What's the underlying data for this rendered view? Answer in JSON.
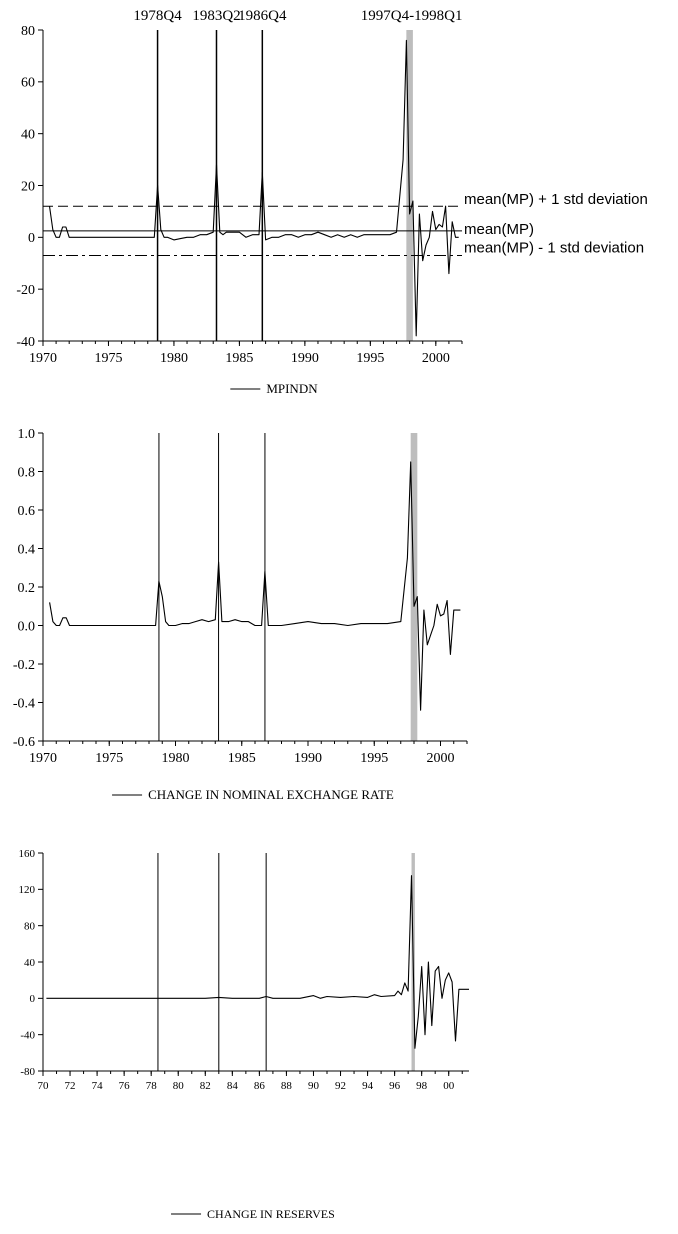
{
  "chart_data": [
    {
      "type": "line",
      "legend_position": "bottom-center",
      "x_ticks": [
        "1970",
        "1975",
        "1980",
        "1985",
        "1990",
        "1995",
        "2000"
      ],
      "y_ticks": [
        "80",
        "60",
        "40",
        "20",
        "0",
        "-20",
        "-40"
      ],
      "ylim": [
        -40,
        80
      ],
      "xlim": [
        1970,
        2002
      ],
      "series": [
        {
          "name": "MPINDN",
          "x": [
            1970.5,
            1970.75,
            1971.0,
            1971.25,
            1971.5,
            1971.75,
            1972.0,
            1972.25,
            1973,
            1974,
            1975,
            1976,
            1977,
            1978,
            1978.5,
            1978.75,
            1979.0,
            1979.25,
            1979.5,
            1980,
            1980.5,
            1981,
            1981.5,
            1982,
            1982.5,
            1983,
            1983.25,
            1983.5,
            1983.75,
            1984,
            1984.5,
            1985,
            1985.5,
            1986,
            1986.5,
            1986.75,
            1987.0,
            1987.5,
            1988,
            1988.5,
            1989,
            1989.5,
            1990,
            1990.5,
            1991,
            1991.5,
            1992,
            1992.5,
            1993,
            1993.5,
            1994,
            1994.5,
            1995,
            1995.5,
            1996,
            1996.5,
            1997,
            1997.5,
            1997.75,
            1998.0,
            1998.25,
            1998.5,
            1998.75,
            1999.0,
            1999.25,
            1999.5,
            1999.75,
            2000.0,
            2000.25,
            2000.5,
            2000.75,
            2001.0,
            2001.25,
            2001.5,
            2001.75
          ],
          "y": [
            12,
            3,
            0,
            0,
            4,
            4,
            0,
            0,
            0,
            0,
            0,
            0,
            0,
            0,
            0,
            20,
            3,
            0,
            0,
            -1,
            -0.5,
            0,
            0,
            1,
            1,
            2,
            28,
            2,
            1,
            2,
            2,
            2,
            0,
            1,
            1,
            25,
            -1,
            0,
            0,
            1,
            1,
            0,
            1,
            1,
            2,
            1,
            0,
            1,
            0,
            1,
            0,
            1,
            1,
            1,
            1,
            1,
            2,
            30,
            76,
            9,
            14,
            -38,
            9,
            -9,
            -3,
            0,
            10,
            3,
            5,
            4,
            12,
            -14,
            6,
            0,
            0
          ]
        }
      ],
      "hlines": [
        {
          "label": "mean(MP) + 1 std deviation",
          "value": 12,
          "style": "dashed"
        },
        {
          "label": "mean(MP)",
          "value": 2.5,
          "style": "solid"
        },
        {
          "label": "mean(MP) - 1 std deviation",
          "value": -7,
          "style": "dashdot"
        }
      ],
      "vlines": [
        {
          "label": "1978Q4",
          "x": 1978.75
        },
        {
          "label": "1983Q2",
          "x": 1983.25
        },
        {
          "label": "1986Q4",
          "x": 1986.75
        }
      ],
      "band": {
        "label": "1997Q4-1998Q1",
        "x0": 1997.75,
        "x1": 1998.25
      }
    },
    {
      "type": "line",
      "legend_position": "bottom-center",
      "x_ticks": [
        "1970",
        "1975",
        "1980",
        "1985",
        "1990",
        "1995",
        "2000"
      ],
      "y_ticks": [
        "1.0",
        "0.8",
        "0.6",
        "0.4",
        "0.2",
        "0.0",
        "-0.2",
        "-0.4",
        "-0.6"
      ],
      "ylim": [
        -0.6,
        1.0
      ],
      "xlim": [
        1970,
        2002
      ],
      "series": [
        {
          "name": "CHANGE IN NOMINAL EXCHANGE RATE",
          "x": [
            1970.5,
            1970.75,
            1971.0,
            1971.25,
            1971.5,
            1971.75,
            1972.0,
            1973,
            1974,
            1975,
            1976,
            1977,
            1978,
            1978.5,
            1978.75,
            1979.0,
            1979.25,
            1979.5,
            1980,
            1980.5,
            1981,
            1981.5,
            1982,
            1982.5,
            1983,
            1983.25,
            1983.5,
            1984,
            1984.5,
            1985,
            1985.5,
            1986,
            1986.5,
            1986.75,
            1987.0,
            1987.5,
            1988,
            1989,
            1990,
            1991,
            1992,
            1993,
            1994,
            1995,
            1996,
            1997,
            1997.5,
            1997.75,
            1998.0,
            1998.25,
            1998.5,
            1998.75,
            1999.0,
            1999.25,
            1999.5,
            1999.75,
            2000.0,
            2000.25,
            2000.5,
            2000.75,
            2001.0,
            2001.25,
            2001.5
          ],
          "y": [
            0.12,
            0.02,
            0.0,
            0.0,
            0.04,
            0.04,
            0.0,
            0.0,
            0.0,
            0.0,
            0.0,
            0.0,
            0.0,
            0.0,
            0.23,
            0.15,
            0.02,
            0.0,
            0.0,
            0.01,
            0.01,
            0.02,
            0.03,
            0.02,
            0.03,
            0.33,
            0.02,
            0.02,
            0.03,
            0.02,
            0.02,
            0.0,
            0.0,
            0.28,
            0.0,
            0.0,
            0.0,
            0.01,
            0.02,
            0.01,
            0.01,
            0.0,
            0.01,
            0.01,
            0.01,
            0.02,
            0.35,
            0.85,
            0.1,
            0.15,
            -0.44,
            0.08,
            -0.1,
            -0.05,
            0.0,
            0.11,
            0.05,
            0.06,
            0.13,
            -0.15,
            0.08,
            0.08,
            0.08
          ]
        }
      ],
      "vlines": [
        {
          "x": 1978.75
        },
        {
          "x": 1983.25
        },
        {
          "x": 1986.75
        }
      ],
      "band": {
        "x0": 1997.75,
        "x1": 1998.25
      }
    },
    {
      "type": "line",
      "legend_position": "bottom-center",
      "x_ticks": [
        "70",
        "72",
        "74",
        "76",
        "78",
        "80",
        "82",
        "84",
        "86",
        "88",
        "90",
        "92",
        "94",
        "96",
        "98",
        "00"
      ],
      "y_ticks": [
        "160",
        "120",
        "80",
        "40",
        "0",
        "-40",
        "-80"
      ],
      "ylim": [
        -80,
        160
      ],
      "xlim": [
        1970,
        2001.5
      ],
      "series": [
        {
          "name": "CHANGE IN RESERVES",
          "x": [
            1970.25,
            1971,
            1972,
            1973,
            1974,
            1975,
            1976,
            1977,
            1978,
            1979,
            1980,
            1981,
            1982,
            1983,
            1984,
            1985,
            1986,
            1986.5,
            1987,
            1988,
            1989,
            1990,
            1990.5,
            1991,
            1992,
            1993,
            1994,
            1994.5,
            1995,
            1996,
            1996.25,
            1996.5,
            1996.75,
            1997.0,
            1997.25,
            1997.5,
            1997.75,
            1998.0,
            1998.25,
            1998.5,
            1998.75,
            1999.0,
            1999.25,
            1999.5,
            1999.75,
            2000.0,
            2000.25,
            2000.5,
            2000.75,
            2001.0,
            2001.25,
            2001.5
          ],
          "y": [
            0,
            0,
            0,
            0,
            0,
            0,
            0,
            0,
            0,
            0,
            0,
            0,
            0,
            1,
            0,
            0,
            0,
            2,
            0,
            0,
            0,
            3,
            0,
            2,
            1,
            2,
            1,
            4,
            2,
            3,
            8,
            4,
            17,
            8,
            135,
            -55,
            -20,
            35,
            -40,
            40,
            -30,
            30,
            35,
            0,
            20,
            28,
            18,
            -47,
            10,
            10,
            10,
            10
          ]
        }
      ],
      "vlines": [
        {
          "x": 1978.5
        },
        {
          "x": 1983.0
        },
        {
          "x": 1986.5
        }
      ],
      "band": {
        "x0": 1997.25,
        "x1": 1997.5
      }
    }
  ]
}
